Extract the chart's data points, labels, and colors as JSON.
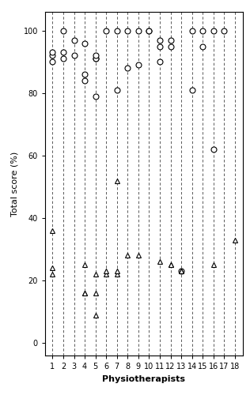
{
  "title": "",
  "xlabel": "Physiotherapists",
  "ylabel": "Total score (%)",
  "xlim": [
    0.3,
    18.7
  ],
  "ylim": [
    -4,
    106
  ],
  "yticks": [
    0,
    20,
    40,
    60,
    80,
    100
  ],
  "xticks": [
    1,
    2,
    3,
    4,
    5,
    6,
    7,
    8,
    9,
    10,
    11,
    12,
    13,
    14,
    15,
    16,
    17,
    18
  ],
  "cope_active": {
    "1": [
      90,
      92,
      93
    ],
    "2": [
      100,
      93,
      91
    ],
    "3": [
      97,
      92
    ],
    "4": [
      84,
      86,
      96
    ],
    "5": [
      79,
      91,
      91,
      92
    ],
    "6": [
      100
    ],
    "7": [
      81,
      100
    ],
    "8": [
      88,
      100
    ],
    "9": [
      100,
      89
    ],
    "10": [
      100,
      100
    ],
    "11": [
      95,
      97,
      90
    ],
    "12": [
      97,
      95
    ],
    "13": [
      23
    ],
    "14": [
      81,
      100
    ],
    "15": [
      95,
      100
    ],
    "16": [
      62,
      100
    ],
    "17": [
      100
    ],
    "18": []
  },
  "physio": {
    "1": [
      22,
      24,
      36
    ],
    "2": [],
    "3": [],
    "4": [
      16,
      16,
      25
    ],
    "5": [
      9,
      16,
      22
    ],
    "6": [
      22,
      23
    ],
    "7": [
      22,
      23,
      52
    ],
    "8": [
      28
    ],
    "9": [
      28
    ],
    "10": [],
    "11": [
      26
    ],
    "12": [
      25,
      25
    ],
    "13": [
      23,
      23
    ],
    "14": [],
    "15": [],
    "16": [
      25
    ],
    "17": [],
    "18": [
      33
    ]
  },
  "background_color": "#ffffff",
  "circle_color": "black",
  "triangle_color": "black",
  "marker_size": 5,
  "tick_fontsize": 7,
  "label_fontsize": 8
}
